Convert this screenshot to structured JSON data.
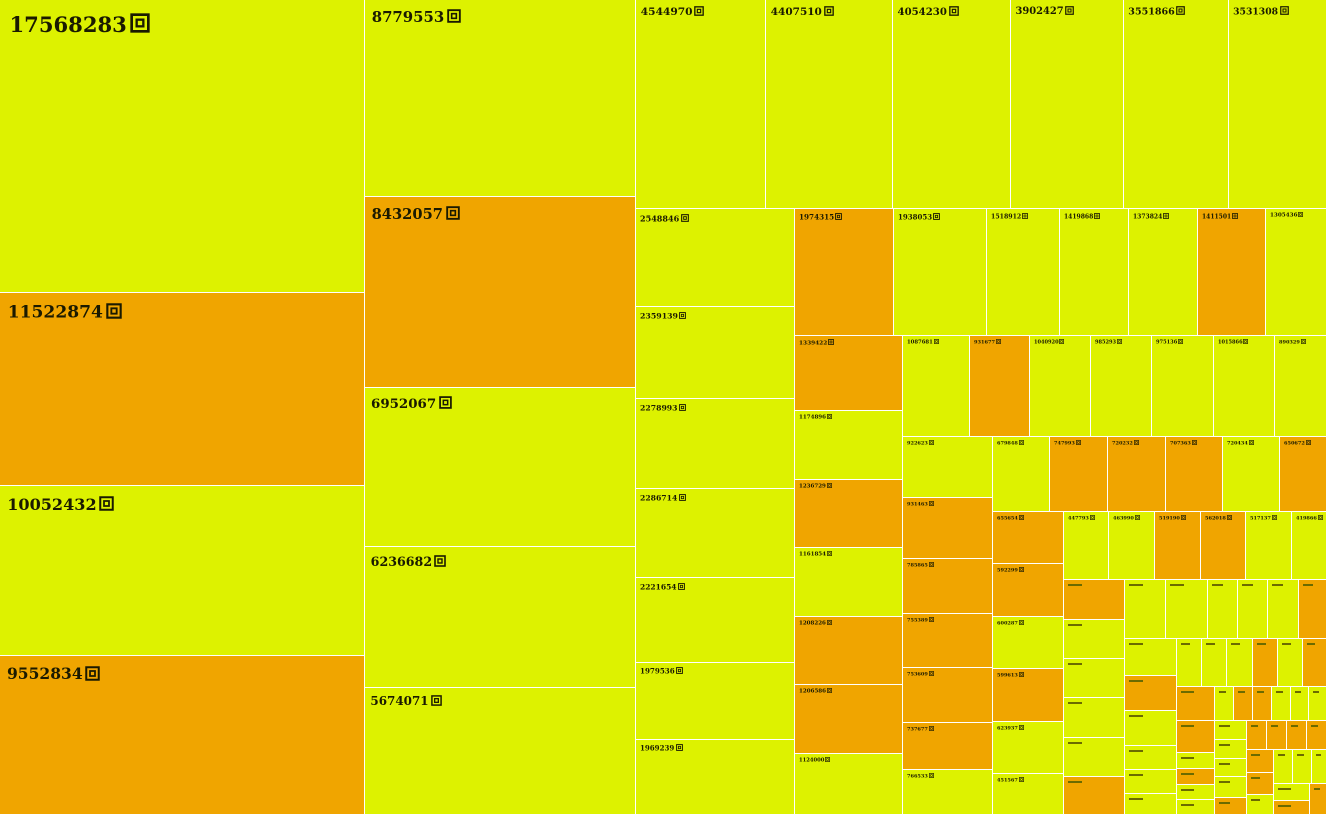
{
  "chart_data": {
    "type": "treemap",
    "unit": "回",
    "colors": {
      "light": "#ddf200",
      "dark": "#f0a500",
      "border": "#ffffff"
    },
    "values": [
      17568283,
      11522874,
      10052432,
      9552834,
      8779553,
      8432057,
      6952067,
      6236682,
      5674071,
      4544970,
      4407510,
      4054230,
      3902427,
      3551866,
      3531308,
      2548846,
      2359139,
      2278993,
      2286714,
      2221654,
      1979536,
      1969239,
      1974315,
      1339422,
      1174896,
      1236729,
      1161854,
      1208226,
      1206586,
      1124000,
      1938053,
      1518912,
      1419868,
      1373824,
      1411501,
      1305436,
      1087681,
      931677,
      1040920,
      985293,
      975136,
      1015866,
      890329,
      922623,
      931463,
      785865,
      755389,
      753609,
      737677,
      766533,
      679848,
      655654,
      592299,
      600287,
      599613,
      623937,
      451567,
      747993,
      720232,
      707363,
      720434,
      650672,
      447793,
      463990,
      519190,
      562018,
      517137,
      419866
    ],
    "highlight": [
      false,
      true,
      false,
      true,
      false,
      true,
      false,
      false,
      false,
      false,
      false,
      false,
      false,
      false,
      false,
      false,
      false,
      false,
      false,
      false,
      false,
      false,
      true,
      true,
      false,
      true,
      false,
      true,
      true,
      false,
      false,
      false,
      false,
      false,
      true,
      false,
      false,
      true,
      false,
      false,
      false,
      false,
      false,
      false,
      true,
      true,
      true,
      true,
      true,
      false,
      false,
      true,
      true,
      false,
      true,
      false,
      false,
      true,
      true,
      true,
      false,
      true,
      false,
      false,
      true,
      true,
      false,
      false
    ]
  }
}
